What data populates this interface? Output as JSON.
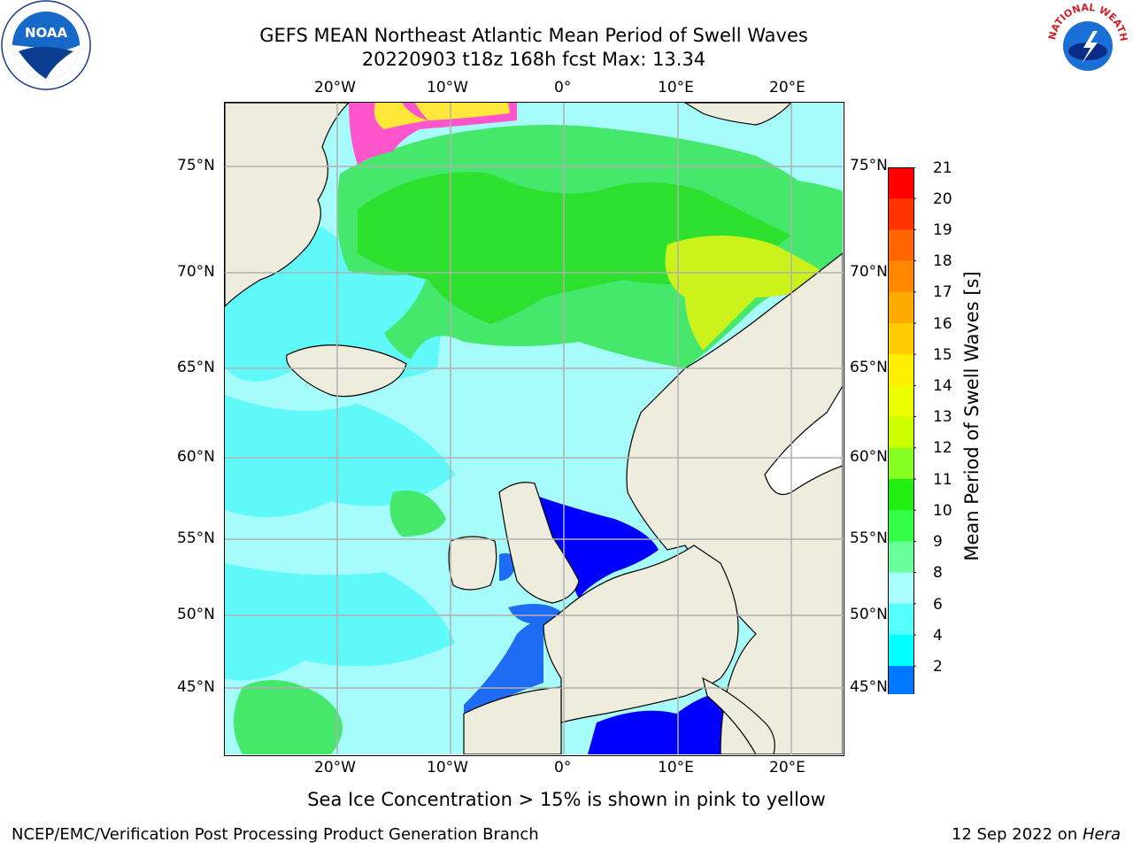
{
  "header": {
    "title_line1": "GEFS MEAN Northeast Atlantic Mean Period of Swell Waves",
    "title_line2": "20220903 t18z 168h fcst   Max: 13.34"
  },
  "logos": {
    "noaa": "NOAA",
    "nws": "NATIONAL WEATHER SERVICE"
  },
  "map": {
    "lon_labels": [
      "20°W",
      "10°W",
      "0°",
      "10°E",
      "20°E"
    ],
    "lat_labels": [
      "75°N",
      "70°N",
      "65°N",
      "60°N",
      "55°N",
      "50°N",
      "45°N"
    ],
    "colors": {
      "land": "#eeecdc",
      "ocean_light": "#a6fbfb",
      "ocean_mid": "#5ff9f9",
      "green": "#45e86a",
      "green_bright": "#2de02d",
      "deep_blue": "#0000ff",
      "mid_blue": "#1f6cf4",
      "ice_pink": "#ff55cc",
      "ice_yellow": "#ffe83a",
      "yellowgreen": "#ccf21b",
      "grid": "#b0b0b0"
    }
  },
  "colorbar": {
    "label": "Mean Period of Swell Waves [s]",
    "ticks": [
      "21",
      "20",
      "19",
      "18",
      "17",
      "16",
      "15",
      "14",
      "13",
      "12",
      "11",
      "10",
      "9",
      "8",
      "6",
      "4",
      "2"
    ],
    "colors": [
      "#ff0000",
      "#ff3300",
      "#ff6600",
      "#ff8800",
      "#ffaa00",
      "#ffcc00",
      "#ffee00",
      "#eeff00",
      "#ccff00",
      "#88ff22",
      "#22ee11",
      "#33ff44",
      "#66ff99",
      "#aaffff",
      "#55ffff",
      "#00ffff",
      "#0077ff",
      "#0000ff"
    ]
  },
  "caption": "Sea Ice Concentration > 15% is shown in pink to yellow",
  "footer": {
    "left": "NCEP/EMC/Verification Post Processing Product Generation Branch",
    "date": "12 Sep 2022 on ",
    "host": "Hera"
  }
}
